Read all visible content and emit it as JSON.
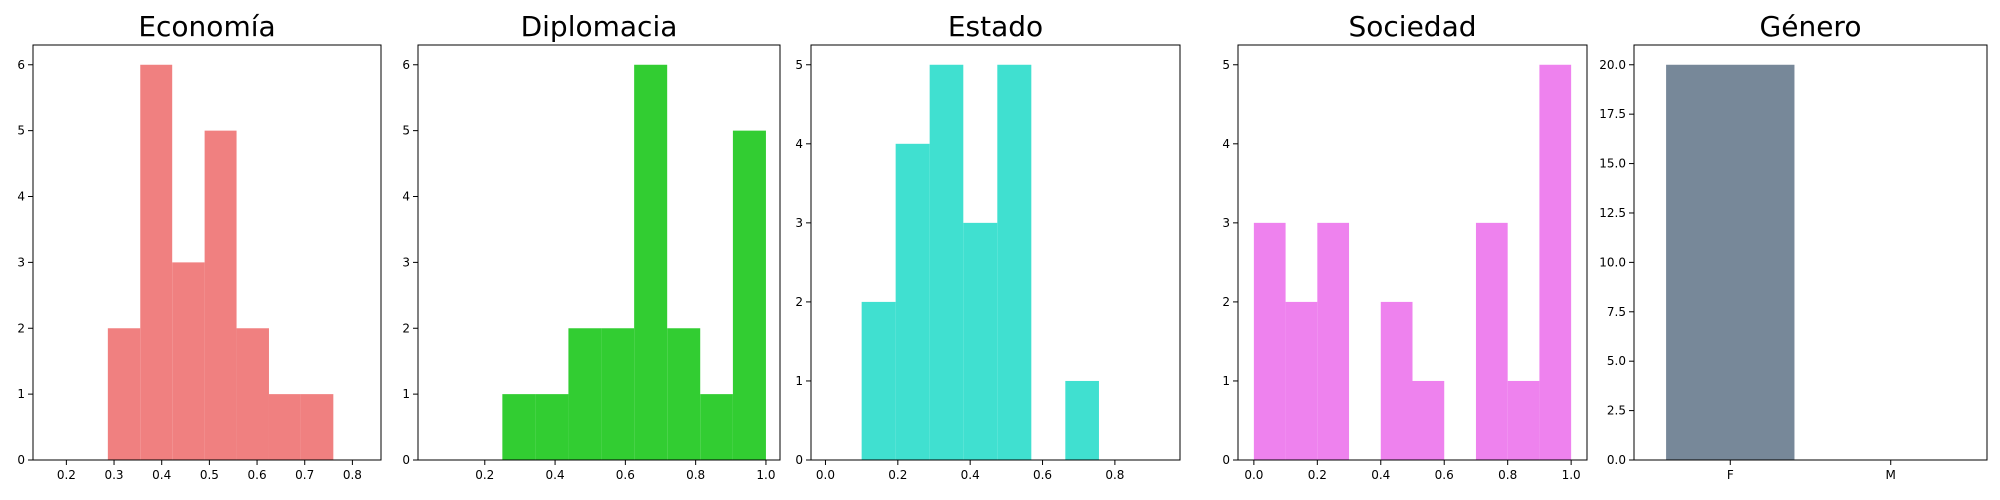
{
  "chart_data": [
    {
      "type": "histogram",
      "title": "Economía",
      "color": "#f08080",
      "xlim": [
        0.13,
        0.86
      ],
      "ylim": [
        0,
        6.3
      ],
      "xticks": [
        0.2,
        0.3,
        0.4,
        0.5,
        0.6,
        0.7,
        0.8
      ],
      "xtick_labels": [
        "0.2",
        "0.3",
        "0.4",
        "0.5",
        "0.6",
        "0.7",
        "0.8"
      ],
      "yticks": [
        0,
        1,
        2,
        3,
        4,
        5,
        6
      ],
      "ytick_labels": [
        "0",
        "1",
        "2",
        "3",
        "4",
        "5",
        "6"
      ],
      "bins": [
        {
          "x0": 0.287,
          "x1": 0.355,
          "count": 2
        },
        {
          "x0": 0.355,
          "x1": 0.422,
          "count": 6
        },
        {
          "x0": 0.422,
          "x1": 0.49,
          "count": 3
        },
        {
          "x0": 0.49,
          "x1": 0.557,
          "count": 5
        },
        {
          "x0": 0.557,
          "x1": 0.625,
          "count": 2
        },
        {
          "x0": 0.625,
          "x1": 0.692,
          "count": 1
        },
        {
          "x0": 0.692,
          "x1": 0.76,
          "count": 1
        }
      ]
    },
    {
      "type": "histogram",
      "title": "Diplomacia",
      "color": "#32cd32",
      "xlim": [
        0.01,
        1.04
      ],
      "ylim": [
        0,
        6.3
      ],
      "xticks": [
        0.2,
        0.4,
        0.6,
        0.8,
        1.0
      ],
      "xtick_labels": [
        "0.2",
        "0.4",
        "0.6",
        "0.8",
        "1.0"
      ],
      "yticks": [
        0,
        1,
        2,
        3,
        4,
        5,
        6
      ],
      "ytick_labels": [
        "0",
        "1",
        "2",
        "3",
        "4",
        "5",
        "6"
      ],
      "bins": [
        {
          "x0": 0.25,
          "x1": 0.344,
          "count": 1
        },
        {
          "x0": 0.344,
          "x1": 0.438,
          "count": 1
        },
        {
          "x0": 0.438,
          "x1": 0.531,
          "count": 2
        },
        {
          "x0": 0.531,
          "x1": 0.625,
          "count": 2
        },
        {
          "x0": 0.625,
          "x1": 0.719,
          "count": 6
        },
        {
          "x0": 0.719,
          "x1": 0.813,
          "count": 2
        },
        {
          "x0": 0.813,
          "x1": 0.906,
          "count": 1
        },
        {
          "x0": 0.906,
          "x1": 1.0,
          "count": 5
        }
      ]
    },
    {
      "type": "histogram",
      "title": "Estado",
      "color": "#40e0d0",
      "xlim": [
        -0.04,
        0.98
      ],
      "ylim": [
        0,
        5.25
      ],
      "xticks": [
        0.0,
        0.2,
        0.4,
        0.6,
        0.8
      ],
      "xtick_labels": [
        "0.0",
        "0.2",
        "0.4",
        "0.6",
        "0.8"
      ],
      "yticks": [
        0,
        1,
        2,
        3,
        4,
        5
      ],
      "ytick_labels": [
        "0",
        "1",
        "2",
        "3",
        "4",
        "5"
      ],
      "bins": [
        {
          "x0": 0.1,
          "x1": 0.194,
          "count": 2
        },
        {
          "x0": 0.194,
          "x1": 0.288,
          "count": 4
        },
        {
          "x0": 0.288,
          "x1": 0.381,
          "count": 5
        },
        {
          "x0": 0.381,
          "x1": 0.475,
          "count": 3
        },
        {
          "x0": 0.475,
          "x1": 0.569,
          "count": 5
        },
        {
          "x0": 0.663,
          "x1": 0.756,
          "count": 1
        }
      ]
    },
    {
      "type": "histogram",
      "title": "Sociedad",
      "color": "#ee82ee",
      "xlim": [
        -0.05,
        1.05
      ],
      "ylim": [
        0,
        5.25
      ],
      "xticks": [
        0.0,
        0.2,
        0.4,
        0.6,
        0.8,
        1.0
      ],
      "xtick_labels": [
        "0.0",
        "0.2",
        "0.4",
        "0.6",
        "0.8",
        "1.0"
      ],
      "yticks": [
        0,
        1,
        2,
        3,
        4,
        5
      ],
      "ytick_labels": [
        "0",
        "1",
        "2",
        "3",
        "4",
        "5"
      ],
      "bins": [
        {
          "x0": 0.0,
          "x1": 0.1,
          "count": 3
        },
        {
          "x0": 0.1,
          "x1": 0.2,
          "count": 2
        },
        {
          "x0": 0.2,
          "x1": 0.3,
          "count": 3
        },
        {
          "x0": 0.4,
          "x1": 0.5,
          "count": 2
        },
        {
          "x0": 0.5,
          "x1": 0.6,
          "count": 1
        },
        {
          "x0": 0.7,
          "x1": 0.8,
          "count": 3
        },
        {
          "x0": 0.8,
          "x1": 0.9,
          "count": 1
        },
        {
          "x0": 0.9,
          "x1": 1.0,
          "count": 5
        }
      ]
    },
    {
      "type": "bar",
      "title": "Género",
      "color": "#778899",
      "categories": [
        "F",
        "M"
      ],
      "values": [
        20,
        0
      ],
      "xlim": [
        -0.6,
        1.6
      ],
      "ylim": [
        0,
        21
      ],
      "yticks": [
        0,
        2.5,
        5,
        7.5,
        10,
        12.5,
        15,
        17.5,
        20
      ],
      "ytick_labels": [
        "0.0",
        "2.5",
        "5.0",
        "7.5",
        "10.0",
        "12.5",
        "15.0",
        "17.5",
        "20.0"
      ]
    }
  ]
}
